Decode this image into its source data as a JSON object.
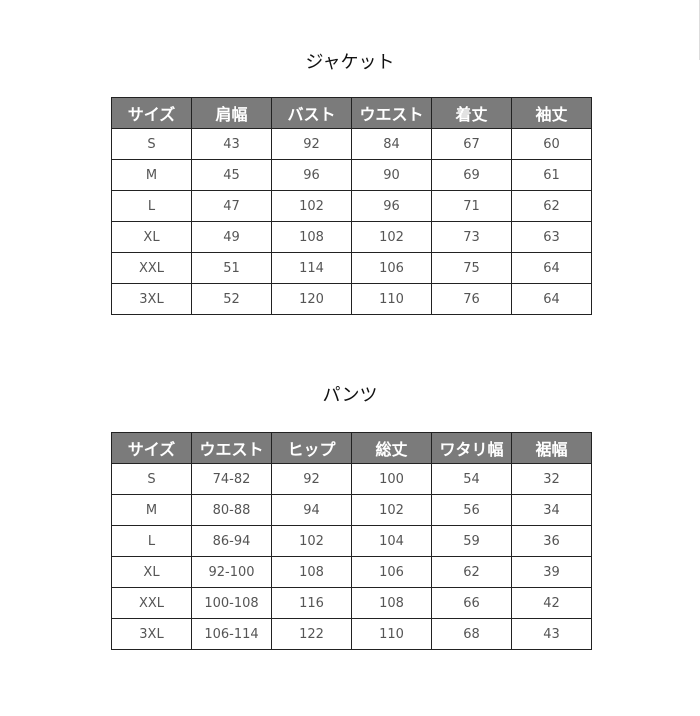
{
  "jacket": {
    "title": "ジャケット",
    "headers": [
      "サイズ",
      "肩幅",
      "バスト",
      "ウエスト",
      "着丈",
      "袖丈"
    ],
    "rows": [
      [
        "S",
        "43",
        "92",
        "84",
        "67",
        "60"
      ],
      [
        "M",
        "45",
        "96",
        "90",
        "69",
        "61"
      ],
      [
        "L",
        "47",
        "102",
        "96",
        "71",
        "62"
      ],
      [
        "XL",
        "49",
        "108",
        "102",
        "73",
        "63"
      ],
      [
        "XXL",
        "51",
        "114",
        "106",
        "75",
        "64"
      ],
      [
        "3XL",
        "52",
        "120",
        "110",
        "76",
        "64"
      ]
    ]
  },
  "pants": {
    "title": "パンツ",
    "headers": [
      "サイズ",
      "ウエスト",
      "ヒップ",
      "総丈",
      "ワタリ幅",
      "裾幅"
    ],
    "rows": [
      [
        "S",
        "74-82",
        "92",
        "100",
        "54",
        "32"
      ],
      [
        "M",
        "80-88",
        "94",
        "102",
        "56",
        "34"
      ],
      [
        "L",
        "86-94",
        "102",
        "104",
        "59",
        "36"
      ],
      [
        "XL",
        "92-100",
        "108",
        "106",
        "62",
        "39"
      ],
      [
        "XXL",
        "100-108",
        "116",
        "108",
        "66",
        "42"
      ],
      [
        "3XL",
        "106-114",
        "122",
        "110",
        "68",
        "43"
      ]
    ]
  },
  "colors": {
    "header_bg": "#7b7b7b",
    "header_text": "#ffffff",
    "border": "#222222"
  }
}
